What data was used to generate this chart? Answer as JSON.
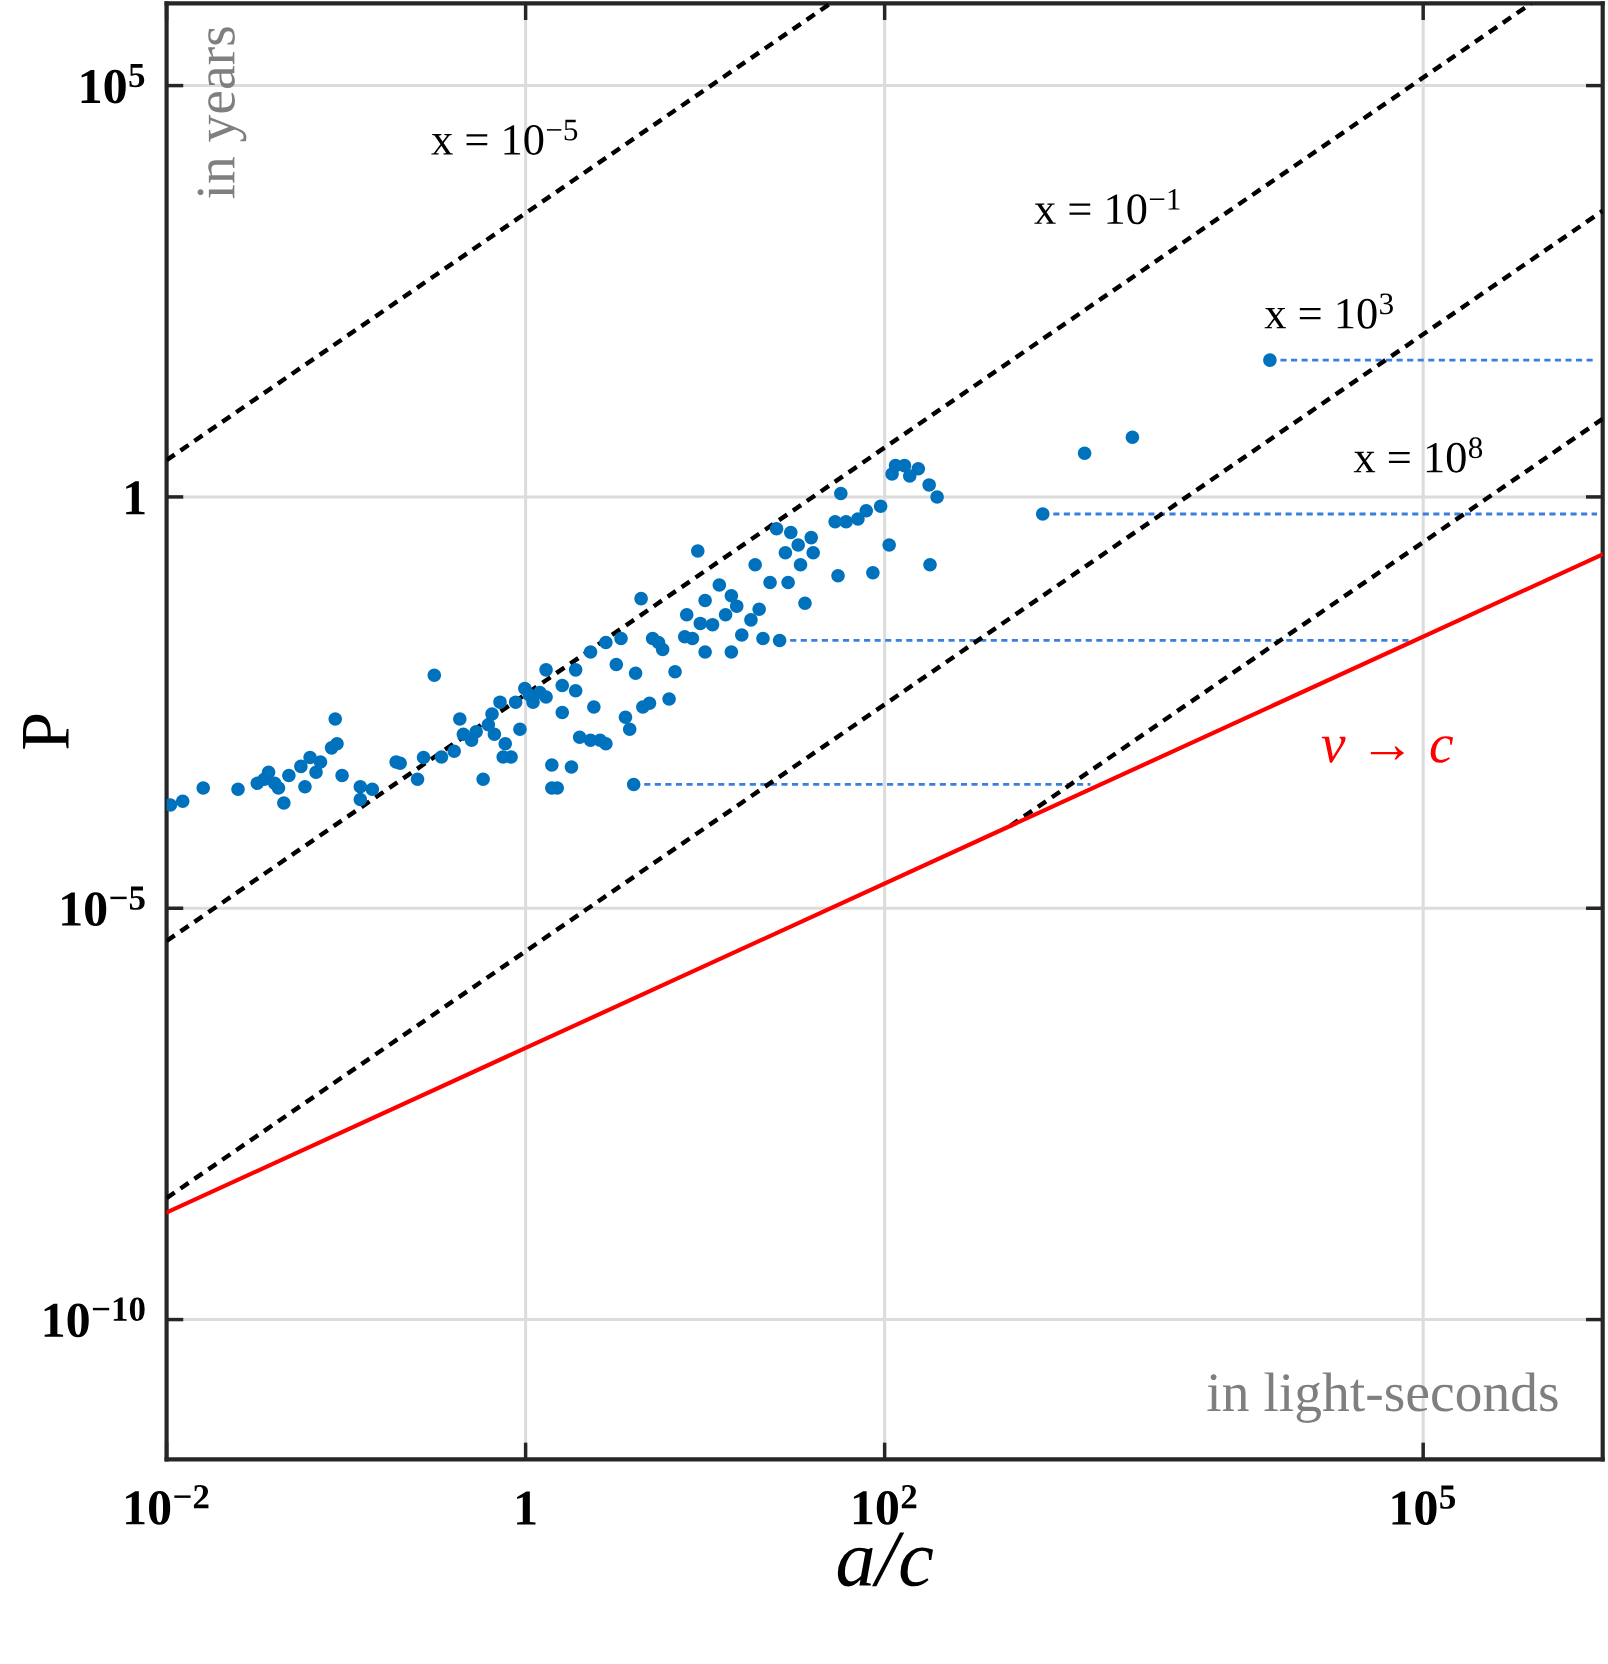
{
  "chart_data": {
    "type": "scatter",
    "xlabel": "a/c",
    "ylabel": "P",
    "log": "xy",
    "grid": true,
    "xlim": [
      0.01,
      1000000
    ],
    "ylim": [
      2e-12,
      1000000
    ],
    "xticks": [
      {
        "value": 0.01,
        "label": "10$^{−2}$"
      },
      1,
      {
        "value": 100,
        "label": "10$^{2}$"
      },
      {
        "value": 100000,
        "label": "10$^{5}$"
      }
    ],
    "yticks": [
      {
        "value": 1e-10,
        "label": "10$^{−10}$"
      },
      {
        "value": 1e-05,
        "label": "10$^{−5}$"
      },
      1,
      {
        "value": 100000,
        "label": "10$^{5}$"
      }
    ],
    "annotations": [
      "in years",
      "in light-seconds"
    ],
    "series": [
      {
        "color": "#0072bd",
        "marker": "circle",
        "x": [
          0.0105,
          0.0123,
          0.016,
          0.025,
          0.032,
          0.035,
          0.037,
          0.04,
          0.042,
          0.045,
          0.048,
          0.056,
          0.059,
          0.063,
          0.068,
          0.072,
          0.083,
          0.087,
          0.089,
          0.095,
          0.12,
          0.12,
          0.14,
          0.19,
          0.2,
          0.25,
          0.27,
          0.31,
          0.34,
          0.4,
          0.43,
          0.45,
          0.5,
          0.53,
          0.58,
          0.62,
          0.65,
          0.67,
          0.72,
          0.75,
          0.77,
          0.83,
          0.88,
          0.93,
          0.99,
          1.05,
          1.1,
          1.2,
          1.3,
          1.3,
          1.4,
          1.5,
          1.4,
          1.6,
          1.6,
          1.8,
          1.9,
          1.9,
          2.0,
          2.3,
          2.3,
          2.4,
          2.6,
          2.8,
          2.8,
          3.4,
          3.2,
          3.6,
          3.8,
          4.1,
          4.0,
          4.4,
          4.5,
          4.9,
          5.1,
          5.5,
          5.8,
          6.3,
          6.8,
          7.7,
          7.9,
          8.5,
          9.1,
          9.4,
          10,
          10,
          11,
          12,
          13,
          14,
          14,
          15,
          16,
          18,
          19,
          20,
          21,
          23,
          25,
          26,
          28,
          29,
          30,
          33,
          34,
          36,
          39,
          40,
          55,
          57,
          53,
          61,
          71,
          79,
          86,
          95,
          106,
          110,
          115,
          129,
          138,
          154,
          177,
          179,
          196,
          760,
          1300,
          2400,
          14000
        ],
        "values": [
          0.00018,
          0.0002,
          0.00029,
          0.00028,
          0.00033,
          0.00037,
          0.00045,
          0.00033,
          0.00029,
          0.00019,
          0.00041,
          0.00053,
          0.0003,
          0.00068,
          0.00045,
          0.0006,
          0.00089,
          0.002,
          0.001,
          0.00041,
          0.0003,
          0.00021,
          0.00028,
          0.0006,
          0.00058,
          0.00037,
          0.00068,
          0.0068,
          0.00069,
          0.00081,
          0.002,
          0.0013,
          0.0011,
          0.0014,
          0.00037,
          0.0017,
          0.0023,
          0.0013,
          0.0032,
          0.00069,
          0.001,
          0.00069,
          0.0032,
          0.0015,
          0.0047,
          0.0039,
          0.0032,
          0.0042,
          0.0079,
          0.0037,
          0.00029,
          0.00029,
          0.00055,
          0.0051,
          0.0024,
          0.00052,
          0.0044,
          0.0079,
          0.0012,
          0.013,
          0.0011,
          0.0028,
          0.0011,
          0.001,
          0.017,
          0.019,
          0.0092,
          0.0021,
          0.0015,
          0.0072,
          0.00032,
          0.058,
          0.0028,
          0.0031,
          0.019,
          0.017,
          0.014,
          0.0035,
          0.0075,
          0.02,
          0.037,
          0.019,
          0.22,
          0.029,
          0.055,
          0.013,
          0.028,
          0.085,
          0.037,
          0.013,
          0.063,
          0.047,
          0.021,
          0.032,
          0.15,
          0.043,
          0.019,
          0.091,
          0.41,
          0.018,
          0.21,
          0.091,
          0.37,
          0.26,
          0.15,
          0.051,
          0.32,
          0.21,
          0.11,
          1.1,
          0.5,
          0.5,
          0.54,
          0.68,
          0.12,
          0.77,
          0.26,
          1.9,
          2.4,
          2.4,
          1.8,
          2.2,
          1.4,
          0.15,
          1.0,
          0.62,
          3.4,
          5.3,
          46
        ]
      },
      {
        "type": "line",
        "color": "#3a7fe0",
        "line_style": "dashed",
        "x": [
          4.0,
          1400
        ],
        "values": [
          0.00032,
          0.00032
        ]
      },
      {
        "type": "line",
        "color": "#3a7fe0",
        "line_style": "dashed",
        "x": [
          26,
          87000
        ],
        "values": [
          0.018,
          0.018
        ]
      },
      {
        "type": "line",
        "color": "#3a7fe0",
        "line_style": "dashed",
        "x": [
          760,
          930000
        ],
        "values": [
          0.62,
          0.62
        ]
      },
      {
        "type": "line",
        "color": "#3a7fe0",
        "line_style": "dashed",
        "x": [
          14000,
          930000
        ],
        "values": [
          46,
          46
        ]
      },
      {
        "type": "line",
        "color": "#000000",
        "line_style": "dashed",
        "name": "x = 10$^{−5}$",
        "x": [
          0.01,
          50
        ],
        "values": [
          2.8,
          1000000
        ]
      },
      {
        "type": "line",
        "color": "#000000",
        "line_style": "dashed",
        "name": "x = 10$^{−1}$",
        "x": [
          0.01,
          400000
        ],
        "values": [
          4e-06,
          1000000
        ]
      },
      {
        "type": "line",
        "color": "#000000",
        "line_style": "dashed",
        "name": "x = 10$^{3}$",
        "x": [
          0.01,
          1000000
        ],
        "values": [
          3e-09,
          3000
        ]
      },
      {
        "type": "line",
        "color": "#000000",
        "line_style": "dashed",
        "name": "x = 10$^{8}$",
        "x": [
          500,
          1000000
        ],
        "values": [
          0.0001,
          8.9
        ]
      },
      {
        "type": "line",
        "color": "#ff0000",
        "line_style": "solid",
        "name": "v → c",
        "x": [
          0.01,
          1000000
        ],
        "values": [
          2e-09,
          0.2
        ]
      }
    ]
  }
}
